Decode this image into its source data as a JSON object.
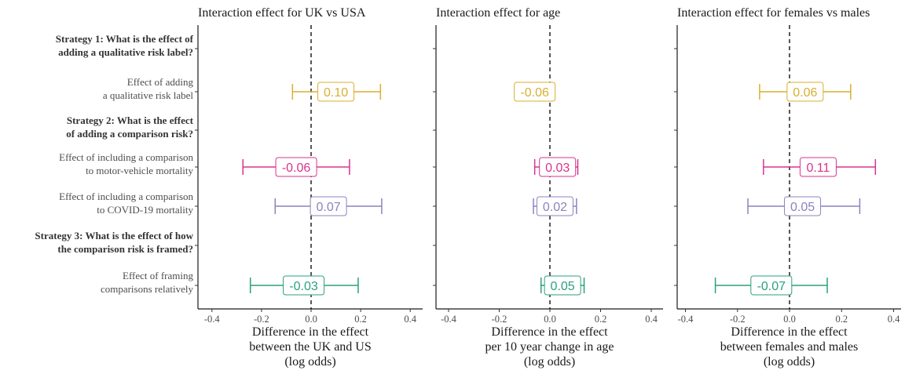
{
  "colors": {
    "qualitative": "#D9AF30",
    "motor": "#D9338F",
    "covid": "#8C83BD",
    "framing": "#2BA07F"
  },
  "rows": [
    {
      "key": "s1",
      "type": "strategy",
      "lines": [
        "Strategy 1: What is the effect of",
        "adding a qualitative risk label?"
      ]
    },
    {
      "key": "r1",
      "type": "effect",
      "lines": [
        "Effect of adding",
        "a qualitative risk label"
      ],
      "color": "qualitative"
    },
    {
      "key": "s2",
      "type": "strategy",
      "lines": [
        "Strategy 2: What is the effect",
        "of adding a comparison risk?"
      ]
    },
    {
      "key": "r2",
      "type": "effect",
      "lines": [
        "Effect of including a comparison",
        "to motor-vehicle mortality"
      ],
      "color": "motor"
    },
    {
      "key": "r3",
      "type": "effect",
      "lines": [
        "Effect of including a comparison",
        "to COVID-19 mortality"
      ],
      "color": "covid"
    },
    {
      "key": "s3",
      "type": "strategy",
      "lines": [
        "Strategy 3: What is the effect of how",
        "the comparison risk is framed?"
      ]
    },
    {
      "key": "r4",
      "type": "effect",
      "lines": [
        "Effect of framing",
        "comparisons relatively"
      ],
      "color": "framing"
    }
  ],
  "chart_data": [
    {
      "type": "forest",
      "title": "Interaction effect for UK vs USA",
      "xlabel": [
        "Difference in the effect",
        "between the UK and US",
        "(log odds)"
      ],
      "xlim": [
        -0.42,
        0.42
      ],
      "xticks": [
        -0.4,
        -0.2,
        0.0,
        0.2,
        0.4
      ],
      "xtick_labels": [
        "-0.4",
        "-0.2",
        "0.0",
        "0.2",
        "0.4"
      ],
      "reference_line": 0,
      "points": [
        {
          "row": "r1",
          "estimate": 0.1,
          "lower": -0.075,
          "upper": 0.28,
          "label": "0.10"
        },
        {
          "row": "r2",
          "estimate": -0.06,
          "lower": -0.275,
          "upper": 0.155,
          "label": "-0.06"
        },
        {
          "row": "r3",
          "estimate": 0.07,
          "lower": -0.145,
          "upper": 0.285,
          "label": "0.07"
        },
        {
          "row": "r4",
          "estimate": -0.03,
          "lower": -0.245,
          "upper": 0.19,
          "label": "-0.03"
        }
      ]
    },
    {
      "type": "forest",
      "title": "Interaction effect for age",
      "xlabel": [
        "Difference in the effect",
        "per 10 year change in age",
        "(log odds)"
      ],
      "xlim": [
        -0.42,
        0.42
      ],
      "xticks": [
        -0.4,
        -0.2,
        0.0,
        0.2,
        0.4
      ],
      "xtick_labels": [
        "-0.4",
        "-0.2",
        "0.0",
        "0.2",
        "0.4"
      ],
      "reference_line": 0,
      "points": [
        {
          "row": "r1",
          "estimate": -0.06,
          "lower": -0.135,
          "upper": 0.005,
          "label": "-0.06"
        },
        {
          "row": "r2",
          "estimate": 0.03,
          "lower": -0.06,
          "upper": 0.11,
          "label": "0.03"
        },
        {
          "row": "r3",
          "estimate": 0.02,
          "lower": -0.065,
          "upper": 0.105,
          "label": "0.02"
        },
        {
          "row": "r4",
          "estimate": 0.05,
          "lower": -0.035,
          "upper": 0.135,
          "label": "0.05"
        }
      ]
    },
    {
      "type": "forest",
      "title": "Interaction effect for females vs males",
      "xlabel": [
        "Difference in the effect",
        "between females and males",
        "(log odds)"
      ],
      "xlim": [
        -0.42,
        0.42
      ],
      "xticks": [
        -0.4,
        -0.2,
        0.0,
        0.2,
        0.4
      ],
      "xtick_labels": [
        "-0.4",
        "-0.2",
        "0.0",
        "0.2",
        "0.4"
      ],
      "reference_line": 0,
      "points": [
        {
          "row": "r1",
          "estimate": 0.06,
          "lower": -0.115,
          "upper": 0.235,
          "label": "0.06"
        },
        {
          "row": "r2",
          "estimate": 0.11,
          "lower": -0.1,
          "upper": 0.33,
          "label": "0.11"
        },
        {
          "row": "r3",
          "estimate": 0.05,
          "lower": -0.16,
          "upper": 0.27,
          "label": "0.05"
        },
        {
          "row": "r4",
          "estimate": -0.07,
          "lower": -0.285,
          "upper": 0.145,
          "label": "-0.07"
        }
      ]
    }
  ]
}
